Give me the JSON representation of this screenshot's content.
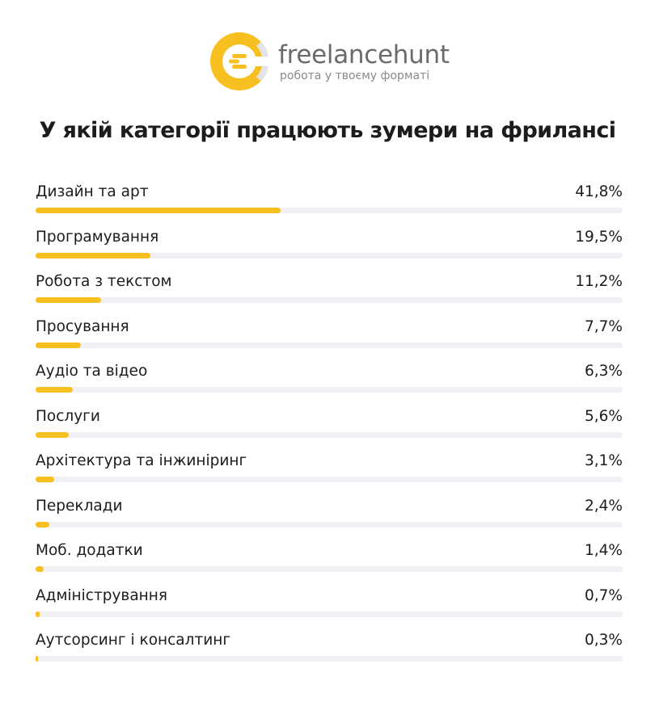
{
  "brand": {
    "name": "freelancehunt",
    "tagline": "робота у твоєму форматі",
    "accent": "#f7bf1f",
    "track_color": "#f1f1f5"
  },
  "chart_data": {
    "type": "bar",
    "orientation": "horizontal",
    "title": "У якій категорії працюють зумери на фрилансі",
    "categories": [
      "Дизайн та арт",
      "Програмування",
      "Робота з текстом",
      "Просування",
      "Аудіо та відео",
      "Послуги",
      "Архітектура та інжиніринг",
      "Переклади",
      "Моб. додатки",
      "Адміністрування",
      "Аутсорсинг і консалтинг"
    ],
    "values": [
      41.8,
      19.5,
      11.2,
      7.7,
      6.3,
      5.6,
      3.1,
      2.4,
      1.4,
      0.7,
      0.3
    ],
    "value_labels": [
      "41,8%",
      "19,5%",
      "11,2%",
      "7,7%",
      "6,3%",
      "5,6%",
      "3,1%",
      "2,4%",
      "1,4%",
      "0,7%",
      "0,3%"
    ],
    "xlim": [
      0,
      100
    ],
    "grid": false,
    "legend": "none"
  }
}
